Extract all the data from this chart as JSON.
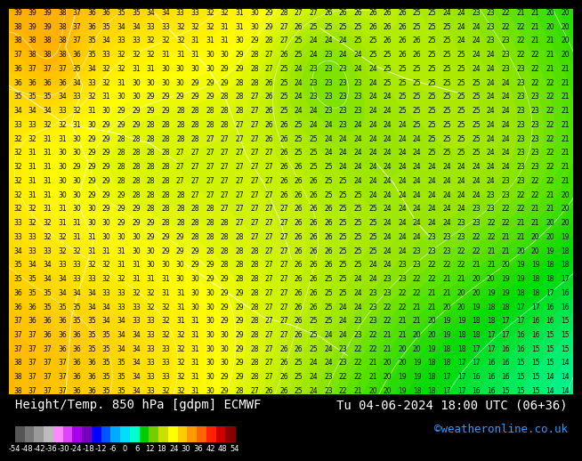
{
  "title_left": "Height/Temp. 850 hPa [gdpm] ECMWF",
  "title_right": "Tu 04-06-2024 18:00 UTC (06+36)",
  "credit": "©weatheronline.co.uk",
  "colorbar_ticks": [
    -54,
    -48,
    -42,
    -36,
    -30,
    -24,
    -18,
    -12,
    -6,
    0,
    6,
    12,
    18,
    24,
    30,
    36,
    42,
    48,
    54
  ],
  "colorbar_colors_hex": [
    "#555555",
    "#888888",
    "#aaaaaa",
    "#cccccc",
    "#ff88ff",
    "#ee44ff",
    "#bb00ff",
    "#8800cc",
    "#0000ff",
    "#0044ff",
    "#0099ff",
    "#00ccff",
    "#00ffee",
    "#00cc00",
    "#88cc00",
    "#ccdd00",
    "#ffff00",
    "#ffcc00",
    "#ff9900",
    "#ff6600",
    "#ff3300",
    "#dd0000",
    "#880000"
  ],
  "bg_color": "#ff4400",
  "credit_color": "#3399ff",
  "title_fontsize": 10,
  "credit_fontsize": 9,
  "colorbar_label_fontsize": 6,
  "number_fontsize": 5.5,
  "number_rows": 28,
  "number_cols": 38
}
